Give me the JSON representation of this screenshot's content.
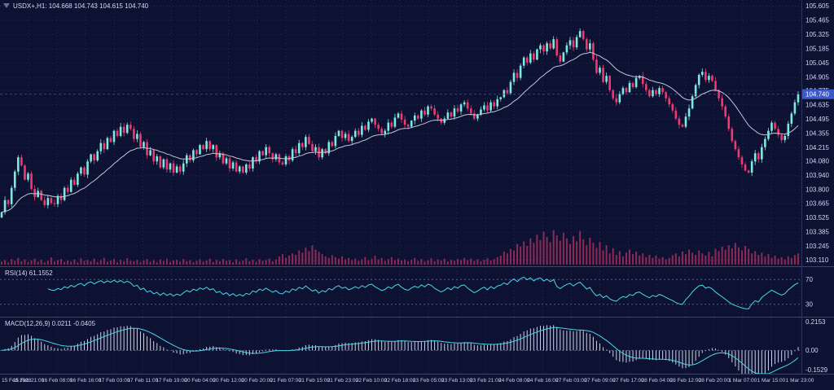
{
  "title_bar": {
    "symbol_info": "USDX+,H1: 104.668 104.743 104.615 104.740",
    "one_click_icon": "triangle-down"
  },
  "price_axis": {
    "labels": [
      "105.605",
      "105.465",
      "105.325",
      "105.185",
      "105.045",
      "104.905",
      "104.775",
      "104.635",
      "104.495",
      "104.355",
      "104.215",
      "104.080",
      "103.940",
      "103.800",
      "103.665",
      "103.525",
      "103.385",
      "103.245",
      "103.110"
    ],
    "current_price": 104.74,
    "current_price_label": "104.740"
  },
  "indicators": {
    "rsi": {
      "label": "RSI(14) 61.1552",
      "levels": [
        "70",
        "30"
      ],
      "level_values": [
        70,
        30
      ],
      "ylim": [
        10,
        90
      ],
      "period": 14
    },
    "macd": {
      "label": "MACD(12,26,9) 0.0211 -0.0405",
      "axis_labels": [
        "0.2153",
        "0.00",
        "-0.1529"
      ],
      "ylim": [
        -0.1529,
        0.2153
      ],
      "fast": 12,
      "slow": 26,
      "signal": 9
    }
  },
  "chart_data": [
    {
      "type": "candlestick",
      "title": "USDX+,H1",
      "ylim": [
        103.05,
        105.665
      ],
      "ma_period": 21,
      "x_labels": [
        "15 Feb 2023",
        "15 Feb 21:00",
        "16 Feb 08:00",
        "16 Feb 16:00",
        "17 Feb 03:00",
        "17 Feb 11:00",
        "17 Feb 19:00",
        "20 Feb 04:00",
        "20 Feb 12:00",
        "20 Feb 20:00",
        "21 Feb 07:00",
        "21 Feb 15:00",
        "21 Feb 23:00",
        "22 Feb 10:00",
        "22 Feb 18:00",
        "23 Feb 05:00",
        "23 Feb 13:00",
        "23 Feb 21:00",
        "24 Feb 08:00",
        "24 Feb 16:00",
        "27 Feb 03:00",
        "27 Feb 09:00",
        "27 Feb 17:00",
        "28 Feb 04:00",
        "28 Feb 12:00",
        "28 Feb 20:00",
        "1 Mar 07:00",
        "1 Mar 15:00",
        "1 Mar 23:00"
      ],
      "closes": [
        103.58,
        103.7,
        103.66,
        103.82,
        103.98,
        104.12,
        104.04,
        103.9,
        103.96,
        103.81,
        103.73,
        103.79,
        103.7,
        103.65,
        103.72,
        103.67,
        103.66,
        103.74,
        103.7,
        103.82,
        103.78,
        103.9,
        103.85,
        103.96,
        104.02,
        103.95,
        104.08,
        104.15,
        104.09,
        104.18,
        104.26,
        104.2,
        104.31,
        104.27,
        104.38,
        104.33,
        104.42,
        104.36,
        104.44,
        104.4,
        104.3,
        104.35,
        104.22,
        104.27,
        104.14,
        104.19,
        104.08,
        104.13,
        104.02,
        104.1,
        104.0,
        104.06,
        103.97,
        104.03,
        103.98,
        104.06,
        104.14,
        104.09,
        104.19,
        104.15,
        104.24,
        104.2,
        104.28,
        104.2,
        104.24,
        104.12,
        104.16,
        104.06,
        104.11,
        104.01,
        104.07,
        103.98,
        104.03,
        103.97,
        104.05,
        104.01,
        104.12,
        104.08,
        104.18,
        104.14,
        104.22,
        104.16,
        104.1,
        104.15,
        104.07,
        104.05,
        104.13,
        104.09,
        104.2,
        104.16,
        104.26,
        104.22,
        104.32,
        104.25,
        104.18,
        104.22,
        104.12,
        104.2,
        104.16,
        104.27,
        104.23,
        104.33,
        104.38,
        104.31,
        104.35,
        104.28,
        104.32,
        104.38,
        104.34,
        104.43,
        104.39,
        104.47,
        104.5,
        104.44,
        104.4,
        104.35,
        104.38,
        104.46,
        104.42,
        104.51,
        104.55,
        104.49,
        104.44,
        104.42,
        104.48,
        104.53,
        104.5,
        104.58,
        104.54,
        104.62,
        104.6,
        104.54,
        104.5,
        104.46,
        104.5,
        104.56,
        104.52,
        104.6,
        104.57,
        104.64,
        104.66,
        104.6,
        104.55,
        104.5,
        104.54,
        104.59,
        104.63,
        104.58,
        104.66,
        104.62,
        104.69,
        104.71,
        104.78,
        104.75,
        104.86,
        104.95,
        104.9,
        105.02,
        105.1,
        105.05,
        105.14,
        105.08,
        105.18,
        105.22,
        105.16,
        105.24,
        105.19,
        105.28,
        105.12,
        105.06,
        105.15,
        105.22,
        105.27,
        105.2,
        105.3,
        105.36,
        105.28,
        105.18,
        105.24,
        105.08,
        104.95,
        105.0,
        104.86,
        104.92,
        104.78,
        104.7,
        104.66,
        104.74,
        104.8,
        104.76,
        104.85,
        104.81,
        104.9,
        104.92,
        104.84,
        104.78,
        104.72,
        104.78,
        104.74,
        104.8,
        104.76,
        104.7,
        104.64,
        104.58,
        104.5,
        104.44,
        104.42,
        104.52,
        104.6,
        104.72,
        104.83,
        104.93,
        104.96,
        104.88,
        104.92,
        104.87,
        104.78,
        104.7,
        104.62,
        104.52,
        104.4,
        104.28,
        104.2,
        104.12,
        104.05,
        103.99,
        103.97,
        104.08,
        104.16,
        104.1,
        104.22,
        104.3,
        104.38,
        104.46,
        104.4,
        104.34,
        104.29,
        104.33,
        104.45,
        104.55,
        104.66,
        104.74
      ]
    },
    {
      "type": "bar",
      "name": "Volume",
      "ylim": [
        0,
        100
      ],
      "values": [
        8,
        12,
        6,
        15,
        10,
        18,
        9,
        14,
        7,
        11,
        16,
        8,
        13,
        6,
        10,
        19,
        9,
        12,
        15,
        7,
        11,
        8,
        14,
        6,
        17,
        10,
        13,
        9,
        16,
        7,
        12,
        18,
        8,
        11,
        15,
        6,
        13,
        9,
        17,
        10,
        9,
        13,
        7,
        11,
        15,
        8,
        12,
        6,
        14,
        10,
        16,
        7,
        11,
        13,
        8,
        15,
        9,
        12,
        6,
        10,
        14,
        8,
        11,
        16,
        7,
        13,
        9,
        15,
        10,
        12,
        6,
        14,
        8,
        11,
        17,
        9,
        13,
        7,
        15,
        10,
        12,
        16,
        9,
        14,
        22,
        28,
        18,
        24,
        30,
        26,
        38,
        32,
        45,
        36,
        52,
        40,
        34,
        28,
        22,
        18,
        25,
        20,
        16,
        22,
        14,
        18,
        12,
        16,
        10,
        14,
        20,
        12,
        16,
        24,
        14,
        18,
        10,
        15,
        20,
        12,
        16,
        11,
        14,
        9,
        13,
        18,
        10,
        15,
        8,
        12,
        17,
        9,
        14,
        11,
        16,
        8,
        13,
        10,
        15,
        12,
        18,
        12,
        16,
        10,
        14,
        9,
        13,
        17,
        11,
        15,
        20,
        24,
        35,
        30,
        42,
        38,
        55,
        48,
        62,
        50,
        70,
        58,
        80,
        66,
        88,
        74,
        60,
        92,
        78,
        64,
        85,
        70,
        55,
        76,
        62,
        90,
        68,
        52,
        72,
        58,
        45,
        60,
        38,
        52,
        30,
        44,
        26,
        36,
        22,
        32,
        40,
        28,
        35,
        24,
        30,
        20,
        26,
        18,
        24,
        16,
        20,
        14,
        18,
        25,
        30,
        22,
        35,
        28,
        40,
        32,
        26,
        38,
        30,
        24,
        34,
        22,
        42,
        36,
        48,
        40,
        52,
        44,
        58,
        46,
        38,
        50,
        42,
        30,
        36,
        26,
        32,
        22,
        28,
        18,
        24,
        16,
        20,
        14,
        22,
        18,
        26,
        30
      ]
    },
    {
      "type": "line",
      "name": "RSI(14)",
      "source": "closes",
      "period": 14,
      "last_value": 61.1552,
      "levels": [
        70,
        30
      ],
      "ylim": [
        10,
        90
      ]
    },
    {
      "type": "line",
      "name": "MACD(12,26,9)",
      "source": "closes",
      "fast": 12,
      "slow": 26,
      "signal": 9,
      "last_macd": 0.0211,
      "last_signal": -0.0405,
      "ylim": [
        -0.1529,
        0.2153
      ]
    }
  ],
  "colors": {
    "bg": "#0d1132",
    "grid": "#232a52",
    "level": "#565d86",
    "axis_text": "#d2d7ee",
    "up": "#7de9e1",
    "down": "#ee3a71",
    "ma": "#c2c6d8",
    "volume": "#8d2a55",
    "rsi": "#49d8e8",
    "macd_hist": "#cfd3e3",
    "macd_signal": "#49d8e8",
    "price_line": "#3c59c9",
    "price_badge_bg": "#3c59c9",
    "separator": "#3d4469"
  }
}
